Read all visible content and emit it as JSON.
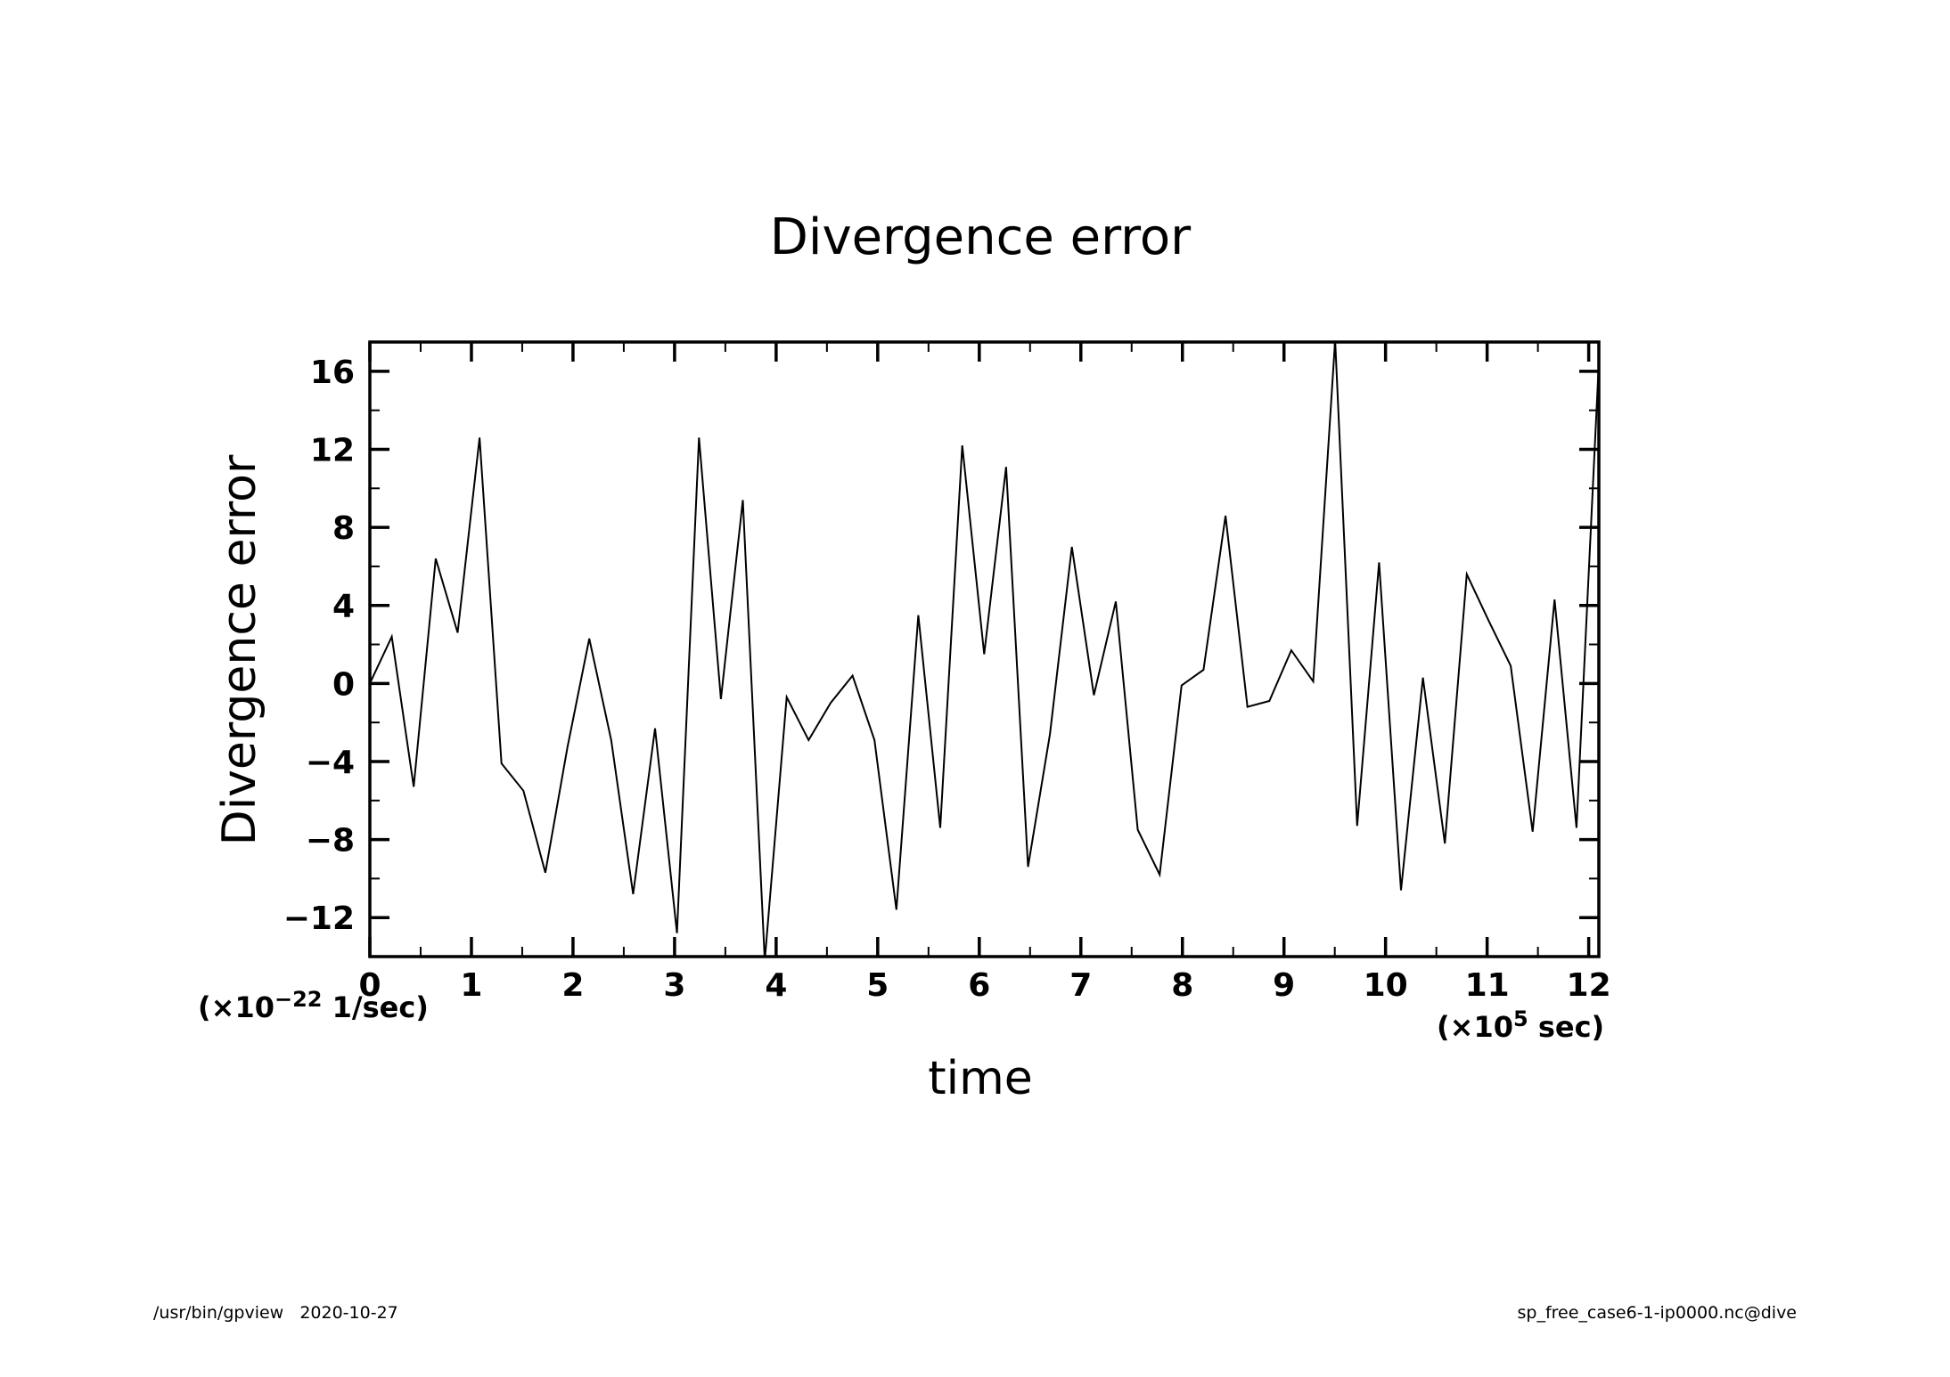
{
  "chart_data": {
    "type": "line",
    "title": "Divergence error",
    "xlabel": "time",
    "ylabel": "Divergence error",
    "x_unit": "(×10",
    "x_unit_exp": "5",
    "x_unit_tail": " sec)",
    "y_unit": "(×10",
    "y_unit_exp": "−22",
    "y_unit_tail": " 1/sec)",
    "xlim": [
      0,
      12.1
    ],
    "ylim": [
      -14,
      17.5
    ],
    "x_ticks": [
      0,
      1,
      2,
      3,
      4,
      5,
      6,
      7,
      8,
      9,
      10,
      11,
      12
    ],
    "x_tick_labels": [
      "0",
      "1",
      "2",
      "3",
      "4",
      "5",
      "6",
      "7",
      "8",
      "9",
      "10",
      "11",
      "12"
    ],
    "y_ticks": [
      -12,
      -8,
      -4,
      0,
      4,
      8,
      12,
      16
    ],
    "y_tick_labels": [
      "−12",
      "−8",
      "−4",
      "0",
      "4",
      "8",
      "12",
      "16"
    ],
    "grid": false,
    "series": [
      {
        "x": [
          0,
          0.216,
          0.432,
          0.648,
          0.864,
          1.08,
          1.296,
          1.512,
          1.728,
          1.944,
          2.16,
          2.376,
          2.592,
          2.808,
          3.024,
          3.24,
          3.456,
          3.672,
          3.888,
          4.104,
          4.32,
          4.536,
          4.752,
          4.968,
          5.184,
          5.4,
          5.616,
          5.832,
          6.048,
          6.264,
          6.48,
          6.696,
          6.912,
          7.128,
          7.344,
          7.56,
          7.776,
          7.992,
          8.208,
          8.424,
          8.64,
          8.856,
          9.072,
          9.288,
          9.504,
          9.72,
          9.936,
          10.152,
          10.368,
          10.584,
          10.8,
          11.016,
          11.232,
          11.448,
          11.664,
          11.88,
          12.096
        ],
        "values": [
          0,
          2.4,
          -5.3,
          6.4,
          2.6,
          12.6,
          -4.1,
          -5.5,
          -9.7,
          -3.3,
          2.3,
          -2.9,
          -10.8,
          -2.3,
          -12.8,
          12.6,
          -0.8,
          9.4,
          -14.2,
          -0.7,
          -2.9,
          -1.0,
          0.4,
          -2.9,
          -11.6,
          3.5,
          -7.4,
          12.2,
          1.5,
          11.1,
          -9.4,
          -2.6,
          7.0,
          -0.6,
          4.2,
          -7.5,
          -9.8,
          -0.1,
          0.7,
          8.6,
          -1.2,
          -0.9,
          1.7,
          0.1,
          17.6,
          -7.3,
          6.2,
          -10.6,
          0.3,
          -8.2,
          5.6,
          3.2,
          0.9,
          -7.6,
          4.3,
          -7.4,
          16.0
        ]
      }
    ]
  },
  "footer": {
    "left": "/usr/bin/gpview   2020-10-27",
    "right": "sp_free_case6-1-ip0000.nc@dive"
  }
}
